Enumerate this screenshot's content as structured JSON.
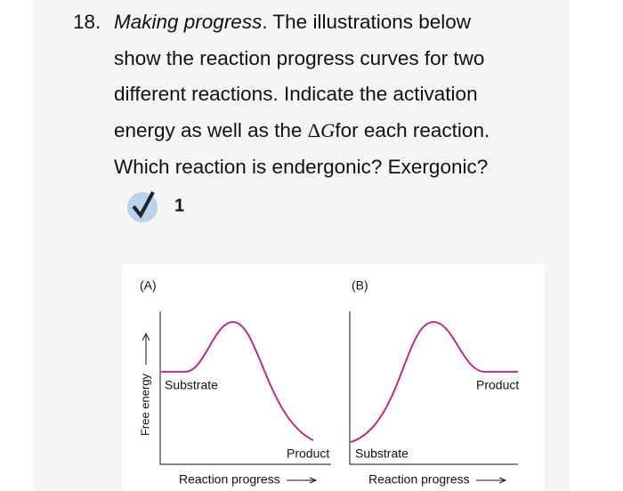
{
  "question": {
    "number": "18.",
    "lines": [
      [
        "Making progress",
        ". The illustrations below"
      ],
      [
        "show the reaction progress curves for two"
      ],
      [
        "different reactions. Indicate the activation"
      ],
      [
        "energy as well as the ",
        "Δ",
        "G",
        "for each reaction."
      ],
      [
        "Which reaction is endergonic? Exergonic?"
      ]
    ],
    "answer": "1"
  },
  "figure": {
    "y_axis": "Free energy",
    "panels": [
      {
        "label": "(A)",
        "start": "Substrate",
        "end": "Product",
        "x_axis": "Reaction progress"
      },
      {
        "label": "(B)",
        "start": "Substrate",
        "end": "Product",
        "x_axis": "Reaction progress"
      }
    ]
  }
}
